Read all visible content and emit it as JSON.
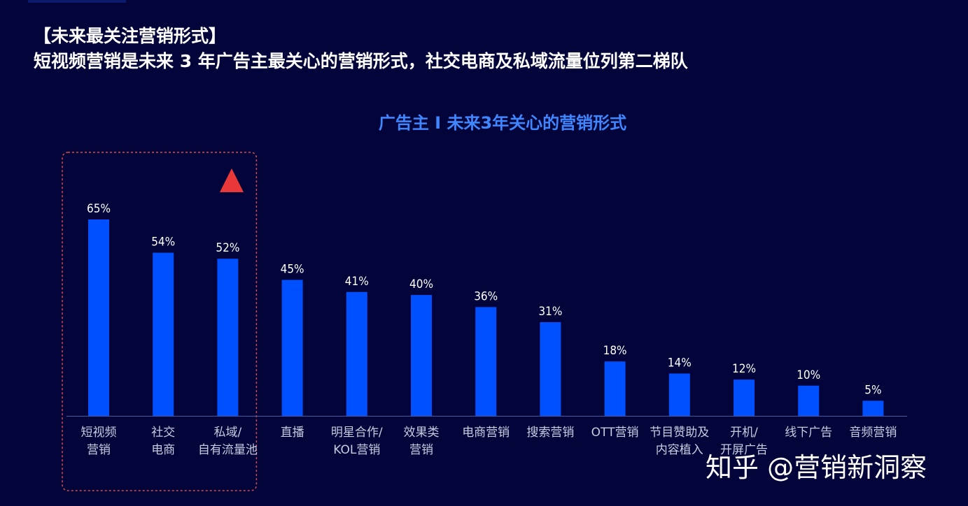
{
  "header": {
    "section_tag": "【未来最关注营销形式】",
    "headline": "短视频营销是未来 3 年广告主最关心的营销形式，社交电商及私域流量位列第二梯队"
  },
  "watermark": "知乎 @营销新洞察",
  "colors": {
    "background": "#02043a",
    "bar": "#0050ff",
    "title": "#3f86ff",
    "highlight_box": "#d94a4a",
    "triangle": "#e8383a"
  },
  "chart_data": {
    "type": "bar",
    "title": "广告主 I 未来3年关心的营销形式",
    "xlabel": "",
    "ylabel": "",
    "value_suffix": "%",
    "ylim": [
      0,
      70
    ],
    "grid": false,
    "categories": [
      [
        "短视频",
        "营销"
      ],
      [
        "社交",
        "电商"
      ],
      [
        "私域/",
        "自有流量池"
      ],
      [
        "直播"
      ],
      [
        "明星合作/",
        "KOL营销"
      ],
      [
        "效果类",
        "营销"
      ],
      [
        "电商营销"
      ],
      [
        "搜索营销"
      ],
      [
        "OTT营销"
      ],
      [
        "节目赞助及",
        "内容植入"
      ],
      [
        "开机/",
        "开屏广告"
      ],
      [
        "线下广告"
      ],
      [
        "音频营销"
      ]
    ],
    "values": [
      65,
      54,
      52,
      45,
      41,
      40,
      36,
      31,
      18,
      14,
      12,
      10,
      5
    ],
    "highlight": {
      "category_indices": [
        0,
        1,
        2
      ],
      "marker": "triangle-up"
    }
  }
}
